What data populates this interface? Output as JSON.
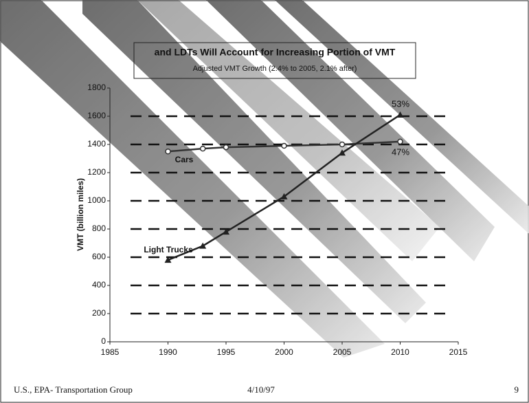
{
  "chart_data": {
    "type": "line",
    "title": "and LDTs Will Account for Increasing Portion of VMT",
    "subtitle": "Adjusted VMT Growth (2.4% to 2005, 2.1% after)",
    "y_label": "VMT (billion miles)",
    "x": [
      1990,
      1993,
      1995,
      2000,
      2005,
      2010
    ],
    "series": [
      {
        "name": "Cars",
        "color": "#333333",
        "marker": "circle",
        "values": [
          1350,
          1370,
          1380,
          1390,
          1400,
          1420
        ]
      },
      {
        "name": "Light Trucks",
        "color": "#222222",
        "marker": "triangle",
        "values": [
          580,
          680,
          780,
          1030,
          1340,
          1610
        ]
      }
    ],
    "annotations": [
      "53%",
      "47%"
    ],
    "xlim": [
      1985,
      2015
    ],
    "xticks": [
      1985,
      1990,
      1995,
      2000,
      2005,
      2010,
      2015
    ],
    "ylim": [
      0,
      1800
    ],
    "yticks": [
      0,
      200,
      400,
      600,
      800,
      1000,
      1200,
      1400,
      1600,
      1800
    ],
    "grid": true
  },
  "footer": {
    "left": "U.S., EPA- Transportation Group",
    "center": "4/10/97",
    "page": "9"
  }
}
